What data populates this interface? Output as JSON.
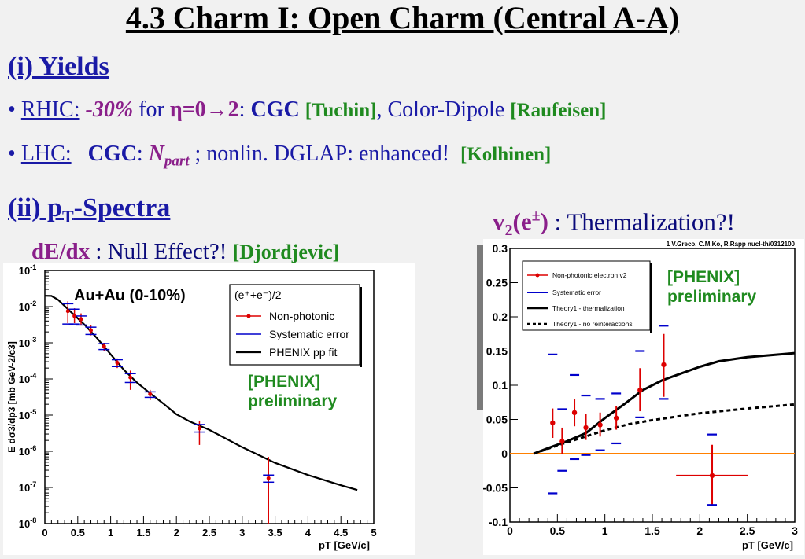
{
  "title": "4.3 Charm I: Open Charm (Central A-A)",
  "section1": {
    "label": "(i)  Yields"
  },
  "rhic": {
    "label": "RHIC:",
    "suppression": "-30%",
    "for_text": "for",
    "eta": "η=0",
    "arrow": "→",
    "eta_end": "2",
    "colon": ":",
    "cgc": "CGC",
    "tuchin": "[Tuchin]",
    "comma": ", Color-Dipole",
    "raufeisen": "[Raufeisen]"
  },
  "lhc": {
    "label": "LHC:",
    "cgc": "CGC",
    "colon": ":",
    "npart_n": "N",
    "npart_sub": "part",
    "rest": " ;   nonlin. DGLAP: enhanced!",
    "kolhinen": "[Kolhinen]"
  },
  "section2": {
    "label_pre": "(ii) p",
    "label_sub": "T",
    "label_post": "-Spectra"
  },
  "dedx": {
    "label": "dE/dx",
    "text": " : Null Effect?!",
    "ref": "[Djordjevic]"
  },
  "v2": {
    "label": "v",
    "sub": "2",
    "paren": "(e",
    "sup": "±",
    "close": ")",
    "text": " : Thermalization?!"
  },
  "colors": {
    "red": "#dd0000",
    "blue": "#0000cc",
    "green": "#1f8a1f",
    "orange": "#ff8000"
  },
  "chart_data": [
    {
      "type": "scatter",
      "title": "Au+Au (0-10%)",
      "xlabel": "pT [GeV/c]",
      "ylabel": "E dσ3/dp3 [mb GeV-2/c3]",
      "xlim": [
        0,
        5
      ],
      "ylim": [
        1e-08,
        0.1
      ],
      "yscale": "log",
      "x_ticks": [
        "0",
        "0.5",
        "1",
        "1.5",
        "2",
        "2.5",
        "3",
        "3.5",
        "4",
        "4.5",
        "5"
      ],
      "y_ticks": [
        {
          "base": "10",
          "exp": "-1"
        },
        {
          "base": "10",
          "exp": "-2"
        },
        {
          "base": "10",
          "exp": "-3"
        },
        {
          "base": "10",
          "exp": "-4"
        },
        {
          "base": "10",
          "exp": "-5"
        },
        {
          "base": "10",
          "exp": "-6"
        },
        {
          "base": "10",
          "exp": "-7"
        },
        {
          "base": "10",
          "exp": "-8"
        }
      ],
      "legend_header": "(e⁺+e⁻)/2",
      "legend": [
        "Non-photonic",
        "Systematic error",
        "PHENIX pp fit"
      ],
      "annotation": [
        "[PHENIX]",
        "preliminary"
      ],
      "points": [
        {
          "x": 0.35,
          "y": 0.0075,
          "lo": 0.0035,
          "hi": 0.014,
          "sys_lo": 0.0033,
          "sys_hi": 0.012
        },
        {
          "x": 0.45,
          "y": 0.0055,
          "lo": 0.0035,
          "hi": 0.009,
          "sys_lo": 0.0033,
          "sys_hi": 0.0085
        },
        {
          "x": 0.55,
          "y": 0.0045,
          "lo": 0.003,
          "hi": 0.0065,
          "sys_lo": 0.0031,
          "sys_hi": 0.0055
        },
        {
          "x": 0.7,
          "y": 0.0022,
          "lo": 0.0016,
          "hi": 0.003,
          "sys_lo": 0.0017,
          "sys_hi": 0.0027
        },
        {
          "x": 0.9,
          "y": 0.0008,
          "lo": 0.0006,
          "hi": 0.001,
          "sys_lo": 0.00065,
          "sys_hi": 0.00095
        },
        {
          "x": 1.1,
          "y": 0.00028,
          "lo": 0.0002,
          "hi": 0.00037,
          "sys_lo": 0.00022,
          "sys_hi": 0.00034
        },
        {
          "x": 1.3,
          "y": 0.00011,
          "lo": 5e-05,
          "hi": 0.00017,
          "sys_lo": 8e-05,
          "sys_hi": 0.00014
        },
        {
          "x": 1.6,
          "y": 3.8e-05,
          "lo": 2.6e-05,
          "hi": 5e-05,
          "sys_lo": 3.1e-05,
          "sys_hi": 4.4e-05
        },
        {
          "x": 2.35,
          "y": 4.3e-06,
          "lo": 1.5e-06,
          "hi": 7e-06,
          "sys_lo": 3.4e-06,
          "sys_hi": 5.5e-06
        },
        {
          "x": 3.4,
          "y": 1.8e-07,
          "lo": 1e-08,
          "hi": 7e-07,
          "sys_lo": 1.4e-07,
          "sys_hi": 2.2e-07
        }
      ],
      "fit_curve": [
        [
          0.0,
          0.02
        ],
        [
          0.1,
          0.0198
        ],
        [
          0.2,
          0.0155
        ],
        [
          0.4,
          0.007
        ],
        [
          0.6,
          0.0032
        ],
        [
          0.8,
          0.0013
        ],
        [
          1.0,
          0.00048
        ],
        [
          1.2,
          0.00018
        ],
        [
          1.4,
          8e-05
        ],
        [
          1.6,
          4e-05
        ],
        [
          1.8,
          2.1e-05
        ],
        [
          2.0,
          1.05e-05
        ],
        [
          2.2,
          6.7e-06
        ],
        [
          2.5,
          3.9e-06
        ],
        [
          3.0,
          1.3e-06
        ],
        [
          3.5,
          4.8e-07
        ],
        [
          4.0,
          2.2e-07
        ],
        [
          4.5,
          1.15e-07
        ],
        [
          4.75,
          8.5e-08
        ]
      ]
    },
    {
      "type": "scatter",
      "title": "",
      "source": "1 V.Greco, C.M.Ko, R.Rapp nucl-th/0312100",
      "xlabel": "pT [GeV/c]",
      "ylabel": "",
      "xlim": [
        0,
        3
      ],
      "ylim": [
        -0.1,
        0.3
      ],
      "x_ticks": [
        "0",
        "0.5",
        "1",
        "1.5",
        "2",
        "2.5",
        "3"
      ],
      "y_ticks": [
        "0.3",
        "0.25",
        "0.2",
        "0.15",
        "0.1",
        "0.05",
        "0",
        "-0.05",
        "-0.1"
      ],
      "legend": [
        "Non-photonic electron v2",
        "Systematic error",
        "Theory1 - thermalization",
        "Theory1 - no reinteractions"
      ],
      "annotation": [
        "[PHENIX]",
        "preliminary"
      ],
      "points": [
        {
          "x": 0.45,
          "y": 0.045,
          "lo": 0.023,
          "hi": 0.066,
          "sys_lo": -0.058,
          "sys_hi": 0.145,
          "xerr": 0
        },
        {
          "x": 0.55,
          "y": 0.018,
          "lo": 0.0,
          "hi": 0.038,
          "sys_lo": -0.025,
          "sys_hi": 0.065,
          "xerr": 0
        },
        {
          "x": 0.68,
          "y": 0.06,
          "lo": 0.04,
          "hi": 0.08,
          "sys_lo": -0.008,
          "sys_hi": 0.115,
          "xerr": 0
        },
        {
          "x": 0.8,
          "y": 0.038,
          "lo": 0.02,
          "hi": 0.058,
          "sys_lo": -0.002,
          "sys_hi": 0.085,
          "xerr": 0
        },
        {
          "x": 0.95,
          "y": 0.042,
          "lo": 0.025,
          "hi": 0.06,
          "sys_lo": 0.005,
          "sys_hi": 0.08,
          "xerr": 0
        },
        {
          "x": 1.12,
          "y": 0.052,
          "lo": 0.035,
          "hi": 0.07,
          "sys_lo": 0.015,
          "sys_hi": 0.088,
          "xerr": 0
        },
        {
          "x": 1.37,
          "y": 0.093,
          "lo": 0.062,
          "hi": 0.125,
          "sys_lo": 0.053,
          "sys_hi": 0.15,
          "xerr": 0
        },
        {
          "x": 1.62,
          "y": 0.13,
          "lo": 0.083,
          "hi": 0.175,
          "sys_lo": 0.08,
          "sys_hi": 0.187,
          "xerr": 0
        },
        {
          "x": 2.13,
          "y": -0.032,
          "lo": -0.075,
          "hi": 0.013,
          "sys_lo": -0.075,
          "sys_hi": 0.028,
          "xerr": 0.38
        }
      ],
      "thermal_curve": [
        [
          0.25,
          0.0
        ],
        [
          0.4,
          0.008
        ],
        [
          0.6,
          0.018
        ],
        [
          0.8,
          0.03
        ],
        [
          1.0,
          0.052
        ],
        [
          1.2,
          0.072
        ],
        [
          1.4,
          0.093
        ],
        [
          1.6,
          0.107
        ],
        [
          1.8,
          0.117
        ],
        [
          2.0,
          0.127
        ],
        [
          2.2,
          0.135
        ],
        [
          2.5,
          0.141
        ],
        [
          3.0,
          0.147
        ]
      ],
      "noreint_curve": [
        [
          0.25,
          0.0
        ],
        [
          0.5,
          0.012
        ],
        [
          0.75,
          0.023
        ],
        [
          1.0,
          0.034
        ],
        [
          1.25,
          0.043
        ],
        [
          1.5,
          0.049
        ],
        [
          1.75,
          0.054
        ],
        [
          2.0,
          0.059
        ],
        [
          2.5,
          0.066
        ],
        [
          3.0,
          0.072
        ]
      ]
    }
  ]
}
